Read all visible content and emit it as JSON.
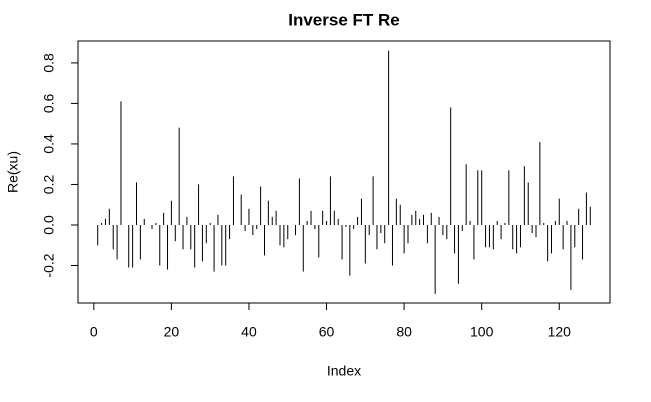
{
  "chart_data": {
    "type": "spike",
    "title": "Inverse FT Re",
    "x_label": "Index",
    "y_label": "Re(xu)",
    "x": [
      1,
      2,
      3,
      4,
      5,
      6,
      7,
      8,
      9,
      10,
      11,
      12,
      13,
      14,
      15,
      16,
      17,
      18,
      19,
      20,
      21,
      22,
      23,
      24,
      25,
      26,
      27,
      28,
      29,
      30,
      31,
      32,
      33,
      34,
      35,
      36,
      37,
      38,
      39,
      40,
      41,
      42,
      43,
      44,
      45,
      46,
      47,
      48,
      49,
      50,
      51,
      52,
      53,
      54,
      55,
      56,
      57,
      58,
      59,
      60,
      61,
      62,
      63,
      64,
      65,
      66,
      67,
      68,
      69,
      70,
      71,
      72,
      73,
      74,
      75,
      76,
      77,
      78,
      79,
      80,
      81,
      82,
      83,
      84,
      85,
      86,
      87,
      88,
      89,
      90,
      91,
      92,
      93,
      94,
      95,
      96,
      97,
      98,
      99,
      100,
      101,
      102,
      103,
      104,
      105,
      106,
      107,
      108,
      109,
      110,
      111,
      112,
      113,
      114,
      115,
      116,
      117,
      118,
      119,
      120,
      121,
      122,
      123,
      124,
      125,
      126,
      127,
      128
    ],
    "values": [
      -0.1,
      0.01,
      0.03,
      0.08,
      -0.12,
      -0.17,
      0.61,
      0.0,
      -0.21,
      -0.21,
      0.21,
      -0.17,
      0.03,
      0.0,
      -0.02,
      0.01,
      -0.2,
      0.06,
      -0.22,
      0.12,
      -0.08,
      0.48,
      -0.12,
      0.04,
      -0.12,
      -0.21,
      0.2,
      -0.18,
      -0.09,
      0.01,
      -0.23,
      0.05,
      -0.2,
      -0.2,
      -0.07,
      0.24,
      0.0,
      0.15,
      -0.03,
      0.08,
      -0.05,
      -0.02,
      0.19,
      -0.15,
      0.12,
      0.04,
      0.07,
      -0.1,
      -0.11,
      -0.07,
      0.0,
      -0.05,
      0.23,
      -0.23,
      0.02,
      0.07,
      -0.02,
      -0.16,
      0.07,
      0.02,
      0.24,
      0.07,
      0.03,
      -0.17,
      -0.01,
      -0.25,
      -0.02,
      0.04,
      0.13,
      -0.19,
      -0.05,
      0.24,
      -0.12,
      -0.04,
      -0.09,
      0.86,
      -0.2,
      0.13,
      0.1,
      -0.14,
      -0.09,
      0.05,
      0.07,
      0.03,
      0.05,
      -0.09,
      0.06,
      -0.34,
      0.04,
      -0.05,
      -0.07,
      0.58,
      -0.14,
      -0.29,
      -0.03,
      0.3,
      0.02,
      -0.17,
      0.27,
      0.27,
      -0.11,
      -0.11,
      -0.12,
      0.02,
      -0.07,
      0.01,
      0.27,
      -0.12,
      -0.14,
      -0.11,
      0.29,
      0.21,
      -0.04,
      -0.06,
      0.41,
      0.01,
      -0.18,
      -0.14,
      0.02,
      0.13,
      -0.12,
      0.02,
      -0.32,
      -0.11,
      0.08,
      -0.17,
      0.16,
      0.09
    ],
    "color": "#000000",
    "xlim": [
      -4.08,
      133.08
    ],
    "xticks": [
      0,
      20,
      40,
      60,
      80,
      100,
      120
    ],
    "ylim": [
      -0.385,
      0.908
    ],
    "yticks": [
      {
        "value": -0.2,
        "label": "-0.2"
      },
      {
        "value": 0,
        "label": "0.0"
      },
      0.2,
      0.4,
      0.6,
      0.8
    ],
    "grid": false
  }
}
